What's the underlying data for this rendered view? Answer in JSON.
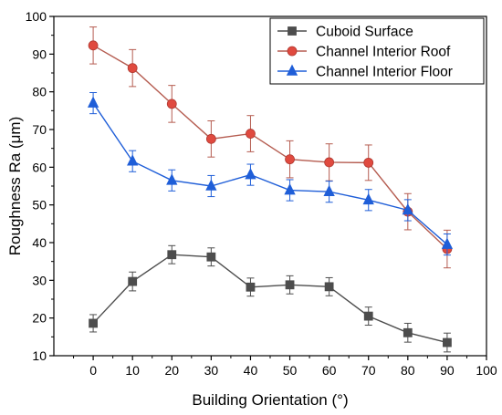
{
  "chart_data": {
    "type": "line",
    "xlabel": "Building Orientation (°)",
    "ylabel": "Roughness Ra (μm)",
    "xlim": [
      -10,
      100
    ],
    "ylim": [
      10,
      100
    ],
    "x_ticks": [
      0,
      10,
      20,
      30,
      40,
      50,
      60,
      70,
      80,
      90,
      100
    ],
    "y_ticks": [
      10,
      20,
      30,
      40,
      50,
      60,
      70,
      80,
      90,
      100
    ],
    "grid": false,
    "legend_position": "top-right",
    "x": [
      0,
      10,
      20,
      30,
      40,
      50,
      60,
      70,
      80,
      90
    ],
    "series": [
      {
        "name": "Cuboid Surface",
        "marker": "square",
        "color": "#4d4d4d",
        "line_color": "#4d4d4d",
        "values": [
          18.6,
          29.7,
          36.8,
          36.2,
          28.2,
          28.8,
          28.3,
          20.5,
          16.1,
          13.5
        ],
        "errors": [
          2.3,
          2.5,
          2.4,
          2.4,
          2.4,
          2.4,
          2.4,
          2.4,
          2.5,
          2.5
        ]
      },
      {
        "name": "Channel Interior Roof",
        "marker": "circle",
        "color": "#e04a3f",
        "line_color": "#b55c50",
        "values": [
          92.3,
          86.3,
          76.8,
          67.5,
          68.9,
          62.1,
          61.3,
          61.2,
          48.2,
          38.3
        ],
        "errors": [
          4.9,
          4.9,
          4.9,
          4.8,
          4.8,
          4.9,
          4.9,
          4.7,
          4.8,
          5.0
        ]
      },
      {
        "name": "Channel Interior Floor",
        "marker": "triangle",
        "color": "#1f5ed8",
        "line_color": "#1f5ed8",
        "values": [
          77.0,
          61.6,
          56.5,
          55.0,
          58.0,
          53.9,
          53.5,
          51.3,
          48.6,
          39.5
        ],
        "errors": [
          2.8,
          2.8,
          2.8,
          2.8,
          2.8,
          2.8,
          2.8,
          2.8,
          2.8,
          2.8
        ]
      }
    ]
  }
}
